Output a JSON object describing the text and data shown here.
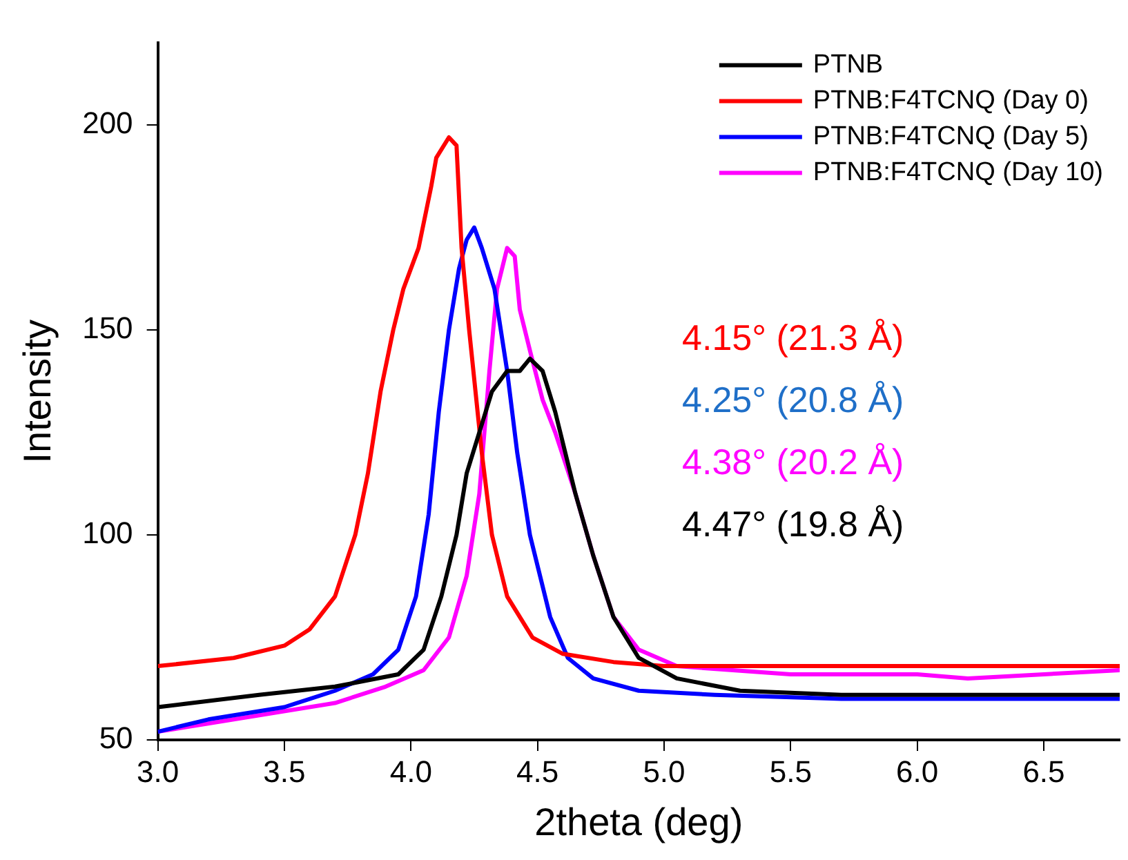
{
  "chart_data": {
    "type": "line",
    "xlabel": "2theta (deg)",
    "ylabel": "Intensity",
    "x": [
      3.0,
      3.3,
      3.5,
      3.6,
      3.7,
      3.78,
      3.83,
      3.88,
      3.93,
      3.97,
      4.03,
      4.08,
      4.1,
      4.15,
      4.18,
      4.2,
      4.23,
      4.28,
      4.32,
      4.38,
      4.48,
      4.6,
      4.8,
      5.0,
      5.5,
      6.0,
      6.5,
      6.8
    ],
    "series": [
      {
        "name": "PTNB",
        "color": "#000000",
        "x": [
          3.0,
          3.4,
          3.7,
          3.95,
          4.05,
          4.12,
          4.18,
          4.22,
          4.27,
          4.32,
          4.38,
          4.43,
          4.47,
          4.52,
          4.57,
          4.65,
          4.72,
          4.8,
          4.9,
          5.05,
          5.3,
          5.7,
          6.2,
          6.8
        ],
        "values": [
          58,
          61,
          63,
          66,
          72,
          85,
          100,
          115,
          125,
          135,
          140,
          140,
          143,
          140,
          130,
          110,
          95,
          80,
          70,
          65,
          62,
          61,
          61,
          61
        ]
      },
      {
        "name": "PTNB:F4TCNQ (Day 0)",
        "color": "#ff0000",
        "values": [
          68,
          70,
          73,
          77,
          85,
          100,
          115,
          135,
          150,
          160,
          170,
          185,
          192,
          197,
          195,
          170,
          150,
          120,
          100,
          85,
          75,
          71,
          69,
          68,
          68,
          68,
          68,
          68
        ]
      },
      {
        "name": "PTNB:F4TCNQ (Day 5)",
        "color": "#0000ff",
        "x": [
          3.0,
          3.2,
          3.5,
          3.7,
          3.85,
          3.95,
          4.02,
          4.07,
          4.11,
          4.15,
          4.19,
          4.22,
          4.25,
          4.28,
          4.33,
          4.38,
          4.42,
          4.47,
          4.55,
          4.62,
          4.72,
          4.9,
          5.2,
          5.7,
          6.2,
          6.8
        ],
        "values": [
          52,
          55,
          58,
          62,
          66,
          72,
          85,
          105,
          130,
          150,
          165,
          172,
          175,
          170,
          160,
          140,
          120,
          100,
          80,
          70,
          65,
          62,
          61,
          60,
          60,
          60
        ]
      },
      {
        "name": "PTNB:F4TCNQ (Day 10)",
        "color": "#ff00ff",
        "x": [
          3.0,
          3.3,
          3.7,
          3.9,
          4.05,
          4.15,
          4.22,
          4.27,
          4.31,
          4.34,
          4.38,
          4.41,
          4.43,
          4.47,
          4.52,
          4.57,
          4.65,
          4.72,
          4.8,
          4.9,
          5.05,
          5.5,
          6.0,
          6.2,
          6.8
        ],
        "values": [
          52,
          55,
          59,
          63,
          67,
          75,
          90,
          110,
          140,
          160,
          170,
          168,
          155,
          145,
          133,
          125,
          110,
          95,
          80,
          72,
          68,
          66,
          66,
          65,
          67
        ]
      }
    ],
    "annotations": [
      "4.15° (21.3 Å)",
      "4.25° (20.8 Å)",
      "4.38° (20.2 Å)",
      "4.47° (19.8 Å)"
    ],
    "xlim": [
      3.0,
      6.8
    ],
    "xticks": [
      {
        "value": 3,
        "label": "3.0"
      },
      3.5,
      {
        "value": 4,
        "label": "4.0"
      },
      4.5,
      {
        "value": 5,
        "label": "5.0"
      },
      5.5,
      {
        "value": 6,
        "label": "6.0"
      },
      6.5
    ],
    "ylim": [
      50,
      220
    ],
    "yticks": [
      50,
      100,
      150,
      200
    ],
    "grid": false,
    "legend": "top right",
    "marker": "none",
    "line_style": "solid"
  }
}
